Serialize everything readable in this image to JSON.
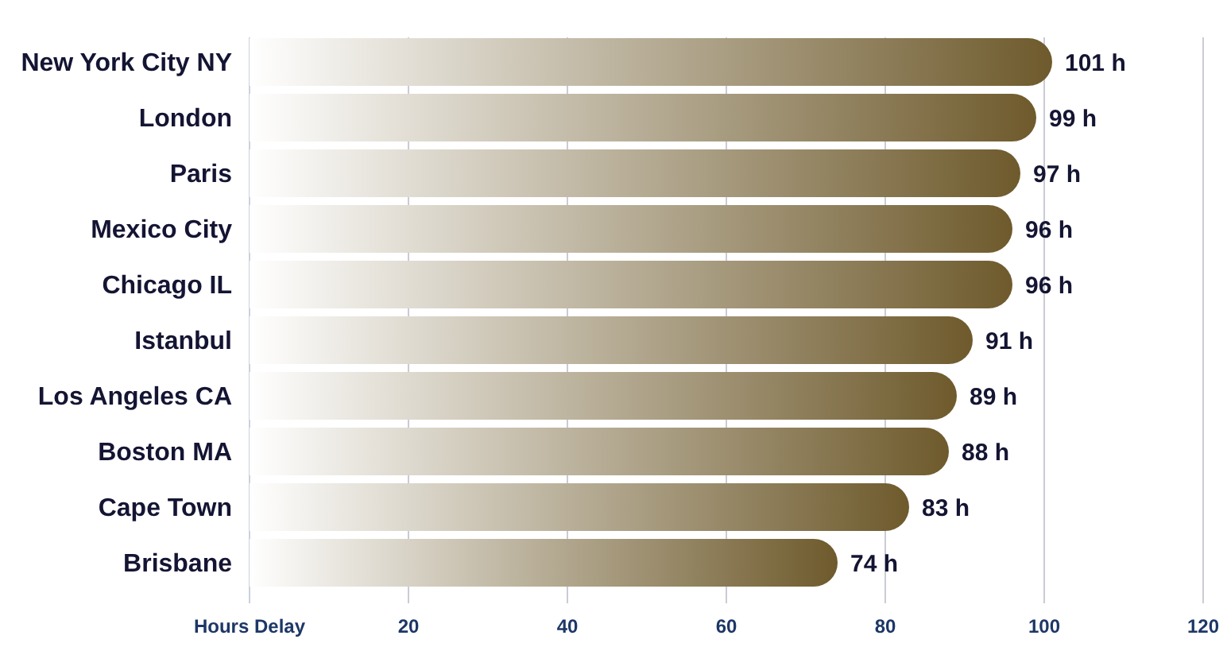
{
  "chart_data": {
    "type": "bar",
    "orientation": "horizontal",
    "categories": [
      "New York City NY",
      "London",
      "Paris",
      "Mexico City",
      "Chicago IL",
      "Istanbul",
      "Los Angeles CA",
      "Boston MA",
      "Cape Town",
      "Brisbane"
    ],
    "values": [
      101,
      99,
      97,
      96,
      96,
      91,
      89,
      88,
      83,
      74
    ],
    "value_labels": [
      "101 h",
      "99 h",
      "97 h",
      "96 h",
      "96 h",
      "91 h",
      "89 h",
      "88 h",
      "83 h",
      "74 h"
    ],
    "color": "#6e5a2c",
    "xlabel": "Hours Delay",
    "xlim": [
      0,
      120
    ],
    "xticks": [
      20,
      40,
      60,
      80,
      100,
      120
    ],
    "grid": "x"
  }
}
